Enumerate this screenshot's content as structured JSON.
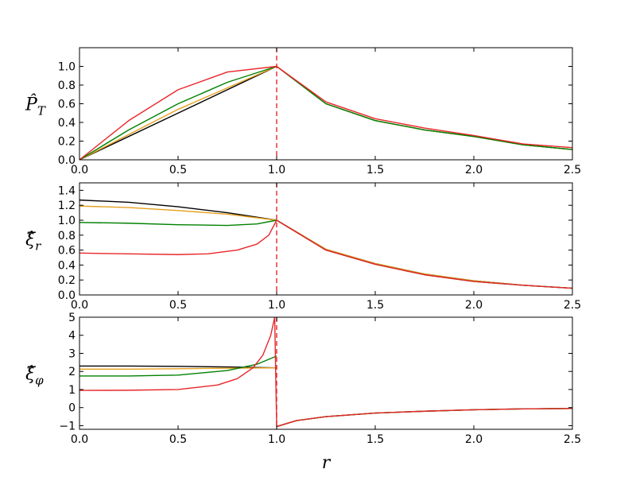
{
  "chart_data": [
    {
      "type": "line",
      "ylabel": "P̂",
      "ylabel_sub": "T",
      "xlim": [
        0.0,
        2.5
      ],
      "ylim": [
        0.0,
        1.2
      ],
      "xticks": [
        "0.0",
        "0.5",
        "1.0",
        "1.5",
        "2.0",
        "2.5"
      ],
      "yticks": [
        "0.0",
        "0.2",
        "0.4",
        "0.6",
        "0.8",
        "1.0"
      ],
      "vline": {
        "x": 1.0,
        "color": "#e8262b",
        "style": "dashed"
      },
      "series": [
        {
          "color": "#000000",
          "x": [
            0.0,
            0.5,
            1.0,
            1.25,
            1.5,
            1.75,
            2.0,
            2.25,
            2.5
          ],
          "y": [
            0.0,
            0.5,
            1.0,
            0.6,
            0.42,
            0.32,
            0.25,
            0.16,
            0.11
          ]
        },
        {
          "color": "#e6a01e",
          "x": [
            0.0,
            0.5,
            1.0,
            1.25,
            1.5,
            1.75,
            2.0,
            2.25,
            2.5
          ],
          "y": [
            0.0,
            0.54,
            1.0,
            0.6,
            0.42,
            0.32,
            0.25,
            0.16,
            0.11
          ]
        },
        {
          "color": "#008000",
          "x": [
            0.0,
            0.25,
            0.5,
            0.75,
            1.0,
            1.25,
            1.5,
            1.75,
            2.0,
            2.25,
            2.5
          ],
          "y": [
            0.0,
            0.32,
            0.6,
            0.83,
            1.0,
            0.6,
            0.42,
            0.32,
            0.25,
            0.16,
            0.11
          ]
        },
        {
          "color": "#e8262b",
          "x": [
            0.0,
            0.25,
            0.5,
            0.75,
            1.0,
            1.25,
            1.5,
            1.75,
            2.0,
            2.25,
            2.5
          ],
          "y": [
            0.0,
            0.42,
            0.75,
            0.94,
            1.0,
            0.62,
            0.44,
            0.34,
            0.26,
            0.17,
            0.13
          ]
        }
      ]
    },
    {
      "type": "line",
      "ylabel": "ξ̂",
      "ylabel_sub": "r",
      "xlim": [
        0.0,
        2.5
      ],
      "ylim": [
        0.0,
        1.5
      ],
      "xticks": [
        "0.0",
        "0.5",
        "1.0",
        "1.5",
        "2.0",
        "2.5"
      ],
      "yticks": [
        "0.0",
        "0.2",
        "0.4",
        "0.6",
        "0.8",
        "1.0",
        "1.2",
        "1.4"
      ],
      "vline": {
        "x": 1.0,
        "color": "#e8262b",
        "style": "dashed"
      },
      "series": [
        {
          "color": "#000000",
          "x": [
            0.0,
            0.25,
            0.5,
            0.75,
            1.0,
            1.25,
            1.5,
            1.75,
            2.0,
            2.25,
            2.5
          ],
          "y": [
            1.27,
            1.24,
            1.18,
            1.1,
            1.0,
            0.61,
            0.42,
            0.28,
            0.19,
            0.13,
            0.09
          ]
        },
        {
          "color": "#e6a01e",
          "x": [
            0.0,
            0.25,
            0.5,
            0.75,
            1.0,
            1.25,
            1.5,
            1.75,
            2.0,
            2.25,
            2.5
          ],
          "y": [
            1.19,
            1.17,
            1.13,
            1.08,
            1.0,
            0.61,
            0.42,
            0.28,
            0.19,
            0.13,
            0.09
          ]
        },
        {
          "color": "#008000",
          "x": [
            0.0,
            0.25,
            0.5,
            0.75,
            0.9,
            1.0,
            1.25,
            1.5,
            1.75,
            2.0,
            2.25,
            2.5
          ],
          "y": [
            0.97,
            0.96,
            0.94,
            0.93,
            0.95,
            1.0,
            0.6,
            0.41,
            0.27,
            0.18,
            0.13,
            0.09
          ]
        },
        {
          "color": "#e8262b",
          "x": [
            0.0,
            0.25,
            0.5,
            0.65,
            0.8,
            0.9,
            0.96,
            1.0,
            1.25,
            1.5,
            1.75,
            2.0,
            2.25,
            2.5
          ],
          "y": [
            0.56,
            0.55,
            0.54,
            0.55,
            0.6,
            0.68,
            0.8,
            1.0,
            0.6,
            0.41,
            0.27,
            0.18,
            0.13,
            0.09
          ]
        }
      ]
    },
    {
      "type": "line",
      "ylabel": "ξ̂",
      "ylabel_sub": "φ",
      "xlabel": "r",
      "xlim": [
        0.0,
        2.5
      ],
      "ylim": [
        -1.2,
        5.0
      ],
      "xticks": [
        "0.0",
        "0.5",
        "1.0",
        "1.5",
        "2.0",
        "2.5"
      ],
      "yticks": [
        "−1",
        "0",
        "1",
        "2",
        "3",
        "4",
        "5"
      ],
      "vline": {
        "x": 1.0,
        "color": "#e8262b",
        "style": "dashed"
      },
      "series": [
        {
          "color": "#000000",
          "x": [
            0.0,
            0.25,
            0.5,
            0.75,
            1.0,
            1.0,
            1.1,
            1.25,
            1.5,
            1.75,
            2.0,
            2.25,
            2.5
          ],
          "y": [
            2.3,
            2.3,
            2.28,
            2.25,
            2.2,
            -1.05,
            -0.72,
            -0.5,
            -0.3,
            -0.2,
            -0.12,
            -0.07,
            -0.05
          ]
        },
        {
          "color": "#e6a01e",
          "x": [
            0.0,
            0.25,
            0.5,
            0.75,
            1.0,
            1.0,
            1.1,
            1.25,
            1.5,
            1.75,
            2.0,
            2.25,
            2.5
          ],
          "y": [
            2.13,
            2.13,
            2.15,
            2.18,
            2.2,
            -1.05,
            -0.72,
            -0.5,
            -0.3,
            -0.2,
            -0.12,
            -0.07,
            -0.05
          ]
        },
        {
          "color": "#008000",
          "x": [
            0.0,
            0.25,
            0.5,
            0.75,
            0.9,
            1.0,
            1.0,
            1.1,
            1.25,
            1.5,
            1.75,
            2.0,
            2.25,
            2.5
          ],
          "y": [
            1.75,
            1.75,
            1.8,
            2.05,
            2.4,
            2.85,
            -1.05,
            -0.72,
            -0.5,
            -0.3,
            -0.2,
            -0.12,
            -0.07,
            -0.05
          ]
        },
        {
          "color": "#e8262b",
          "x": [
            0.0,
            0.25,
            0.5,
            0.7,
            0.8,
            0.88,
            0.93,
            0.97,
            0.99,
            1.0,
            1.1,
            1.25,
            1.5,
            1.75,
            2.0,
            2.25,
            2.5
          ],
          "y": [
            0.95,
            0.96,
            1.0,
            1.25,
            1.6,
            2.2,
            2.9,
            4.0,
            5.0,
            -1.05,
            -0.72,
            -0.5,
            -0.3,
            -0.2,
            -0.12,
            -0.07,
            -0.05
          ]
        }
      ]
    }
  ]
}
